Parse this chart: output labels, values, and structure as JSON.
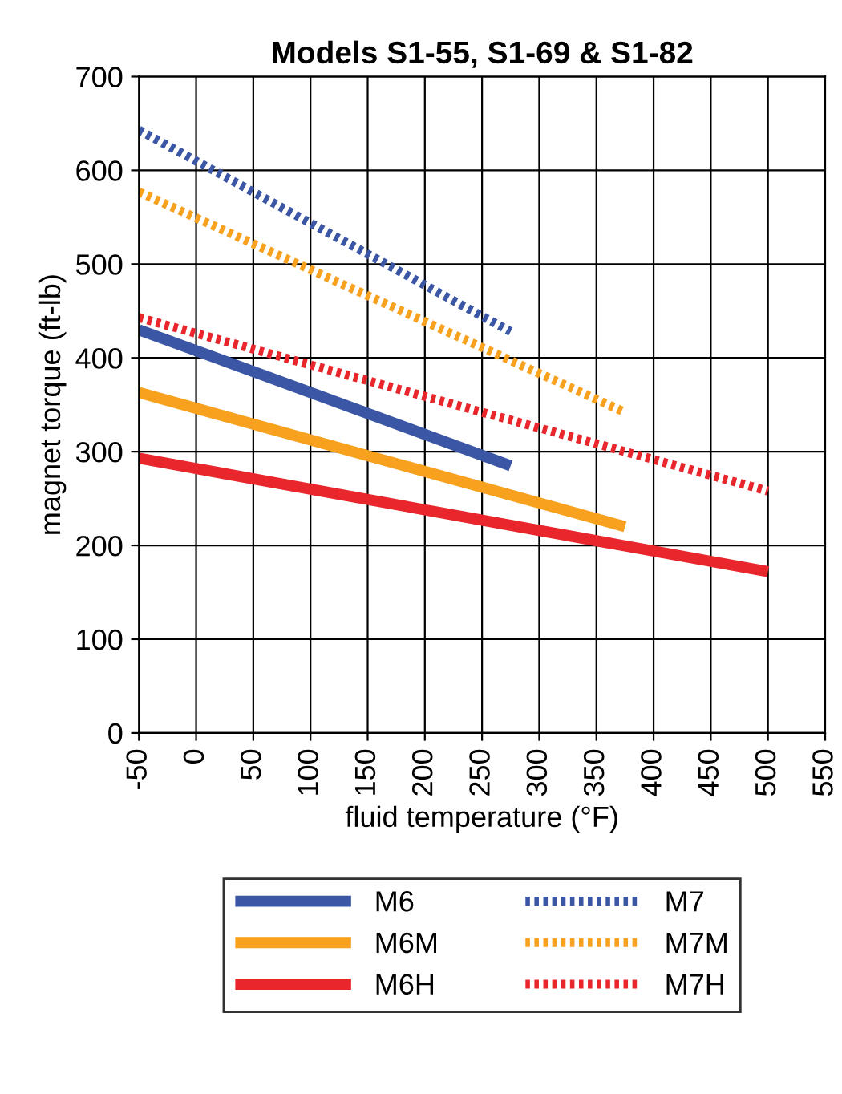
{
  "chart_data": {
    "type": "line",
    "title": "Models S1-55, S1-69 & S1-82",
    "xlabel": "fluid temperature (°F)",
    "ylabel": "magnet torque (ft-lb)",
    "xlim": [
      -50,
      550
    ],
    "xticks": [
      -50,
      0,
      50,
      100,
      150,
      200,
      250,
      300,
      350,
      400,
      450,
      500,
      550
    ],
    "ylim": [
      0,
      700
    ],
    "yticks": [
      0,
      100,
      200,
      300,
      400,
      500,
      600,
      700
    ],
    "grid": true,
    "legend": "bottom",
    "marker": "none",
    "series": [
      {
        "name": "M6",
        "color": "#3a56a4",
        "x": [
          -50,
          275
        ],
        "values": [
          430,
          285
        ],
        "line_style": "solid"
      },
      {
        "name": "M7",
        "color": "#3a56a4",
        "x": [
          -50,
          275
        ],
        "values": [
          643,
          428
        ],
        "line_style": "dotted"
      },
      {
        "name": "M6M",
        "color": "#f7a11e",
        "x": [
          -50,
          375
        ],
        "values": [
          363,
          220
        ],
        "line_style": "solid"
      },
      {
        "name": "M7M",
        "color": "#f7a11e",
        "x": [
          -50,
          375
        ],
        "values": [
          577,
          342
        ],
        "line_style": "dotted"
      },
      {
        "name": "M6H",
        "color": "#e8262b",
        "x": [
          -50,
          500
        ],
        "values": [
          293,
          172
        ],
        "line_style": "solid"
      },
      {
        "name": "M7H",
        "color": "#e8262b",
        "x": [
          -50,
          500
        ],
        "values": [
          443,
          258
        ],
        "line_style": "dotted"
      }
    ]
  }
}
